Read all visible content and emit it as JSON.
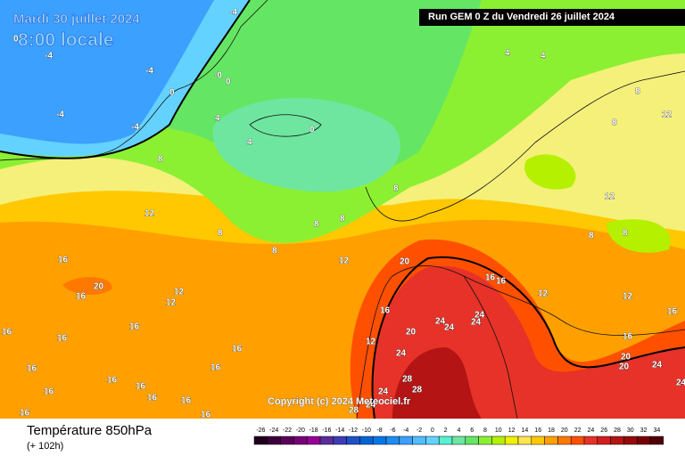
{
  "header": {
    "date": "Mardi 30 juillet 2024",
    "time": "8:00 locale",
    "run": "Run GEM 0 Z du Vendredi 26 juillet 2024"
  },
  "copyright": "Copyright (c) 2024 Meteociel.fr",
  "footer": {
    "title": "Température 850hPa",
    "subtitle": "(+ 102h)"
  },
  "scale": {
    "values": [
      -26,
      -24,
      -22,
      -20,
      -18,
      -16,
      -14,
      -12,
      -10,
      -8,
      -6,
      -4,
      -2,
      0,
      2,
      4,
      6,
      8,
      10,
      12,
      14,
      16,
      18,
      20,
      22,
      24,
      26,
      28,
      30,
      32,
      34
    ],
    "colors": [
      "#1e001e",
      "#3c003c",
      "#5a005a",
      "#780078",
      "#960096",
      "#5a2d9b",
      "#3c3cb4",
      "#1e50c8",
      "#0064d2",
      "#0078e6",
      "#1e8cf0",
      "#3ca0ff",
      "#50beff",
      "#64d2ff",
      "#5af0d2",
      "#6ee6a0",
      "#64e664",
      "#8cf032",
      "#b4f000",
      "#f0f000",
      "#ffe650",
      "#ffc800",
      "#ffa000",
      "#ff7800",
      "#ff5000",
      "#e63228",
      "#d21e1e",
      "#b41414",
      "#960a0a",
      "#780000",
      "#500000"
    ]
  },
  "contour_labels": [
    -4,
    0,
    -4,
    -4,
    "-0",
    0,
    0,
    -4,
    -4,
    4,
    4,
    0,
    8,
    12,
    8,
    8,
    8,
    8,
    8,
    12,
    4,
    4,
    8,
    12,
    8,
    12,
    8,
    8,
    16,
    20,
    16,
    12,
    12,
    16,
    16,
    20,
    16,
    16,
    12,
    12,
    16,
    24,
    24,
    24,
    24,
    20,
    12,
    24,
    16,
    16,
    20,
    20,
    24,
    24,
    28,
    28,
    24,
    24,
    28,
    16,
    16,
    16,
    16,
    16,
    16,
    16,
    16,
    16,
    16,
    16
  ]
}
